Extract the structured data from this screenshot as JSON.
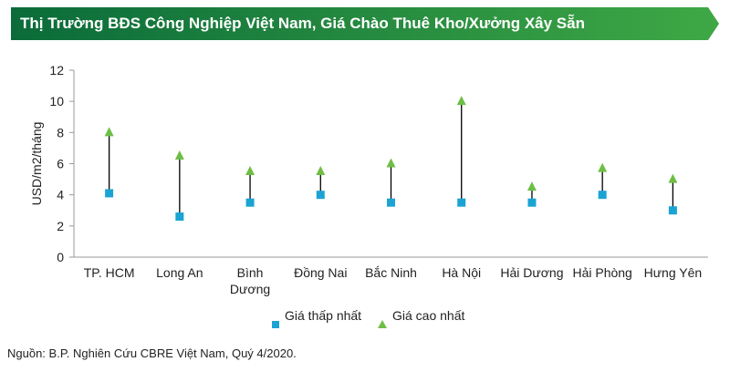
{
  "header": {
    "title": "Thị Trường BĐS Công Nghiệp Việt Nam, Giá Chào Thuê Kho/Xưởng Xây Sẵn"
  },
  "colors": {
    "banner_dark": "#0B6B3A",
    "banner_light": "#3FA845",
    "low": "#1BA3D4",
    "high": "#6DBE45",
    "stem": "#000000"
  },
  "chart_data": {
    "type": "scatter",
    "title": "",
    "ylabel": "USD/m2/tháng",
    "xlabel": "",
    "ylim": [
      0,
      12
    ],
    "yticks": [
      0,
      2,
      4,
      6,
      8,
      10,
      12
    ],
    "grid": false,
    "legend_position": "bottom",
    "categories": [
      [
        "TP. HCM"
      ],
      [
        "Long An"
      ],
      [
        "Bình",
        "Dương"
      ],
      [
        "Đồng Nai"
      ],
      [
        "Bắc Ninh"
      ],
      [
        "Hà Nội"
      ],
      [
        "Hải Dương"
      ],
      [
        "Hải Phòng"
      ],
      [
        "Hưng Yên"
      ]
    ],
    "series": [
      {
        "name": "Giá thấp nhất",
        "marker": "square",
        "values": [
          4.1,
          2.6,
          3.5,
          4.0,
          3.5,
          3.5,
          3.5,
          4.0,
          3.0
        ]
      },
      {
        "name": "Giá cao nhất",
        "marker": "triangle",
        "values": [
          8.0,
          6.5,
          5.5,
          5.5,
          6.0,
          10.0,
          4.5,
          5.7,
          5.0
        ]
      }
    ]
  },
  "legend": {
    "low_label": "Giá thấp nhất",
    "high_label": "Giá cao nhất"
  },
  "footer": {
    "source": "Nguồn: B.P. Nghiên Cứu CBRE Việt Nam, Quý 4/2020."
  }
}
